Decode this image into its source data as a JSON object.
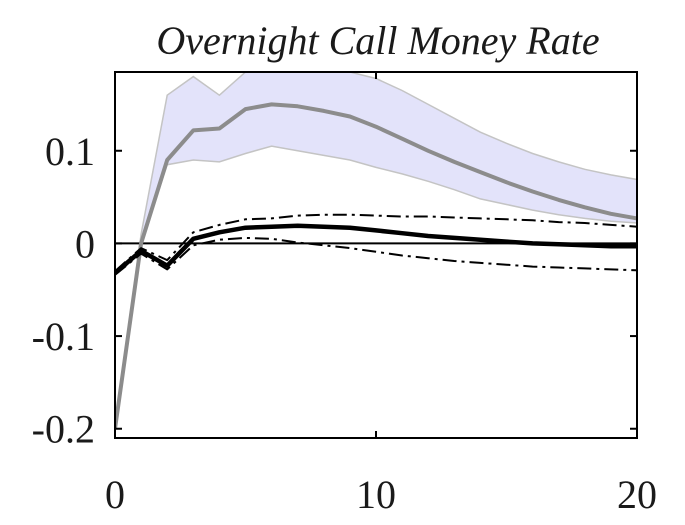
{
  "chart_data": {
    "type": "line",
    "title": "Overnight Call Money Rate",
    "xlabel": "",
    "ylabel": "",
    "xlim": [
      0,
      20
    ],
    "ylim": [
      -0.21,
      0.185
    ],
    "x_ticks": [
      0,
      10,
      20
    ],
    "x_tick_labels": [
      "0",
      "10",
      "20"
    ],
    "y_ticks": [
      0.1,
      0,
      -0.1,
      -0.2
    ],
    "y_tick_labels": [
      "0.1",
      "0",
      "-0.1",
      "-0.2"
    ],
    "grid": false,
    "legend": "none",
    "x": [
      0,
      1,
      2,
      3,
      4,
      5,
      6,
      7,
      8,
      9,
      10,
      11,
      12,
      13,
      14,
      15,
      16,
      17,
      18,
      19,
      20
    ],
    "zero_line": 0,
    "band": {
      "color": "#e3e3fa",
      "edge_color": "#c4c4c4",
      "upper": [
        -0.2,
        0.01,
        0.16,
        0.18,
        0.16,
        0.185,
        0.185,
        0.185,
        0.185,
        0.185,
        0.178,
        0.165,
        0.15,
        0.135,
        0.12,
        0.108,
        0.097,
        0.088,
        0.08,
        0.074,
        0.069
      ],
      "lower": [
        -0.2,
        0.0,
        0.085,
        0.09,
        0.088,
        0.097,
        0.105,
        0.1,
        0.095,
        0.09,
        0.082,
        0.075,
        0.067,
        0.058,
        0.048,
        0.042,
        0.036,
        0.031,
        0.027,
        0.024,
        0.022
      ]
    },
    "series": [
      {
        "color": "#8c8c8c",
        "style": "solid",
        "values": [
          -0.2,
          0.0,
          0.09,
          0.122,
          0.124,
          0.145,
          0.15,
          0.148,
          0.143,
          0.137,
          0.126,
          0.113,
          0.1,
          0.088,
          0.077,
          0.066,
          0.056,
          0.047,
          0.039,
          0.032,
          0.027
        ]
      },
      {
        "color": "#000000",
        "style": "solid",
        "values": [
          -0.032,
          -0.008,
          -0.024,
          0.005,
          0.012,
          0.017,
          0.018,
          0.019,
          0.018,
          0.017,
          0.014,
          0.011,
          0.008,
          0.006,
          0.004,
          0.002,
          0.0,
          -0.001,
          -0.002,
          -0.003,
          -0.003
        ]
      },
      {
        "color": "#000000",
        "style": "dashdot",
        "values": [
          -0.03,
          -0.005,
          -0.018,
          0.012,
          0.02,
          0.026,
          0.027,
          0.03,
          0.031,
          0.031,
          0.03,
          0.029,
          0.029,
          0.028,
          0.027,
          0.026,
          0.025,
          0.023,
          0.022,
          0.02,
          0.018
        ]
      },
      {
        "color": "#000000",
        "style": "dashdot",
        "values": [
          -0.034,
          -0.011,
          -0.028,
          -0.002,
          0.004,
          0.006,
          0.005,
          0.001,
          -0.002,
          -0.005,
          -0.009,
          -0.013,
          -0.016,
          -0.019,
          -0.021,
          -0.023,
          -0.025,
          -0.026,
          -0.027,
          -0.028,
          -0.029
        ]
      }
    ]
  }
}
